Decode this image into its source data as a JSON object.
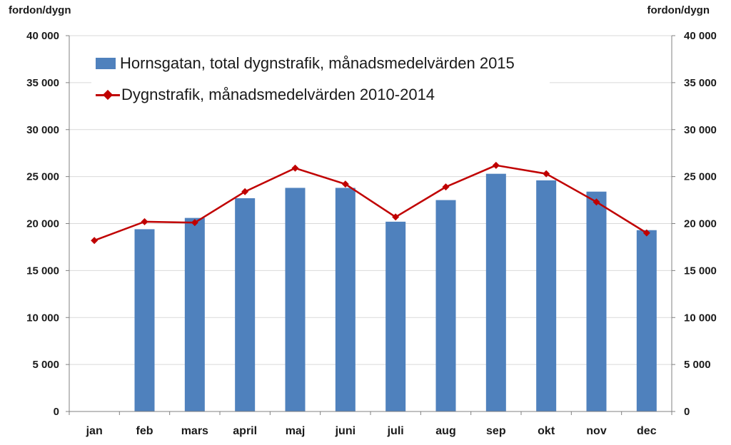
{
  "axis": {
    "left_unit": "fordon/dygn",
    "right_unit": "fordon/dygn"
  },
  "legend": {
    "bar_label": "Hornsgatan, total dygnstrafik, månadsmedelvärden 2015",
    "line_label": "Dygnstrafik, månadsmedelvärden 2010-2014"
  },
  "colors": {
    "bar": "#4f81bd",
    "line": "#c00000",
    "gridline": "#d9d9d9",
    "axis": "#808080"
  },
  "chart_data": {
    "type": "bar",
    "categories": [
      "jan",
      "feb",
      "mars",
      "april",
      "maj",
      "juni",
      "juli",
      "aug",
      "sep",
      "okt",
      "nov",
      "dec"
    ],
    "series": [
      {
        "name": "Hornsgatan, total dygnstrafik, månadsmedelvärden 2015",
        "type": "bar",
        "axis": "left",
        "values": [
          null,
          19400,
          20600,
          22700,
          23800,
          23800,
          20200,
          22500,
          25300,
          24600,
          23400,
          19300
        ]
      },
      {
        "name": "Dygnstrafik, månadsmedelvärden 2010-2014",
        "type": "line",
        "marker": "diamond",
        "axis": "left",
        "values": [
          18200,
          20200,
          20100,
          23400,
          25900,
          24200,
          20700,
          23900,
          26200,
          25300,
          22300,
          19000
        ]
      }
    ],
    "ylim": [
      0,
      40000
    ],
    "y2lim": [
      0,
      40000
    ],
    "yticks": [
      "0",
      "5 000",
      "10 000",
      "15 000",
      "20 000",
      "25 000",
      "30 000",
      "35 000",
      "40 000"
    ],
    "ylabel": "fordon/dygn",
    "y2label": "fordon/dygn",
    "grid": true,
    "legend_position": "top-left"
  }
}
